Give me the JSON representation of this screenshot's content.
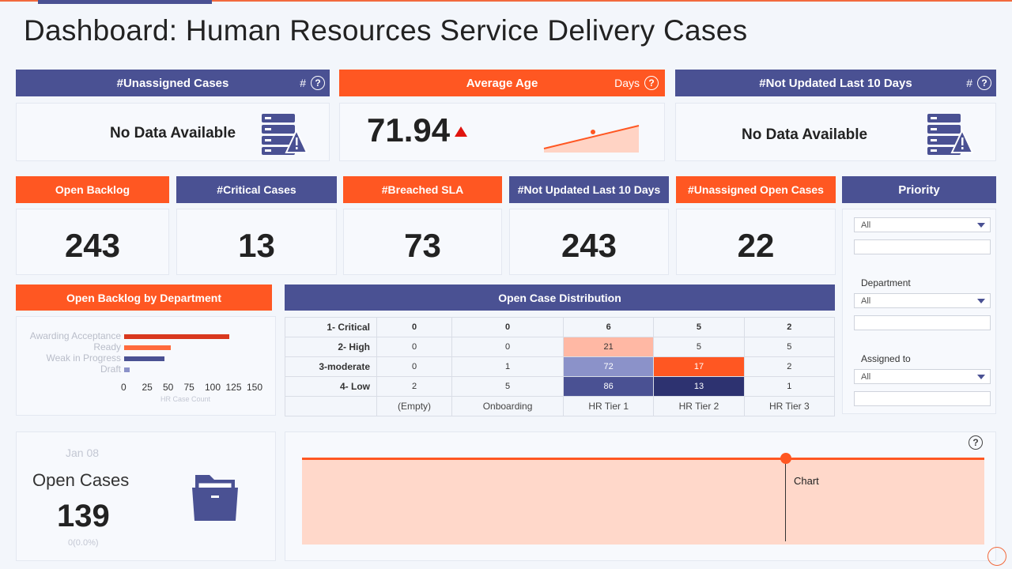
{
  "title": "Dashboard: Human Resources Service Delivery Cases",
  "top_cards": {
    "unassigned": {
      "label": "#Unassigned Cases",
      "unit": "#",
      "value": "No Data Available"
    },
    "average_age": {
      "label": "Average Age",
      "unit": "Days",
      "value": "71.94"
    },
    "not_updated": {
      "label": "#Not  Updated Last 10 Days",
      "unit": "#",
      "value": "No Data Available"
    }
  },
  "kpis": [
    {
      "label": "Open Backlog",
      "value": "243"
    },
    {
      "label": "#Critical Cases",
      "value": "13"
    },
    {
      "label": "#Breached SLA",
      "value": "73"
    },
    {
      "label": "#Not Updated Last 10 Days",
      "value": "243"
    },
    {
      "label": "#Unassigned Open Cases",
      "value": "22"
    }
  ],
  "filters": {
    "title": "Priority",
    "priority_value": "All",
    "department_label": "Department",
    "department_value": "All",
    "assigned_label": "Assigned to",
    "assigned_value": "All"
  },
  "backlog_by_dept": {
    "title": "Open Backlog by Department",
    "xlabel": "HR Case Count"
  },
  "distribution": {
    "title": "Open Case Distribution",
    "rows": [
      {
        "label": "1- Critical",
        "cells": [
          "0",
          "0",
          "6",
          "5",
          "2"
        ]
      },
      {
        "label": "2- High",
        "cells": [
          "0",
          "0",
          "21",
          "5",
          "5"
        ]
      },
      {
        "label": "3-moderate",
        "cells": [
          "0",
          "1",
          "72",
          "17",
          "2"
        ]
      },
      {
        "label": "4- Low",
        "cells": [
          "2",
          "5",
          "86",
          "13",
          "1"
        ]
      }
    ],
    "columns": [
      "(Empty)",
      "Onboarding",
      "HR Tier 1",
      "HR Tier 2",
      "HR Tier 3"
    ]
  },
  "open_cases": {
    "date": "Jan 08",
    "label": "Open Cases",
    "value": "139",
    "change": "0(0.0%)"
  },
  "timeline": {
    "tooltip": "Chart"
  },
  "colors": {
    "blue": "#4a5193",
    "orange": "#ff5722"
  },
  "chart_data": {
    "type": "bar",
    "categories": [
      "Awarding Acceptance",
      "Ready",
      "Weak in Progress",
      "Draft"
    ],
    "values": [
      125,
      56,
      48,
      7
    ],
    "colors": [
      "#d9381e",
      "#ff6a3d",
      "#4a5193",
      "#8b92c9"
    ],
    "xlabel": "HR Case Count",
    "xticks": [
      0,
      25,
      50,
      75,
      100,
      125,
      150
    ],
    "xlim": [
      0,
      150
    ]
  }
}
